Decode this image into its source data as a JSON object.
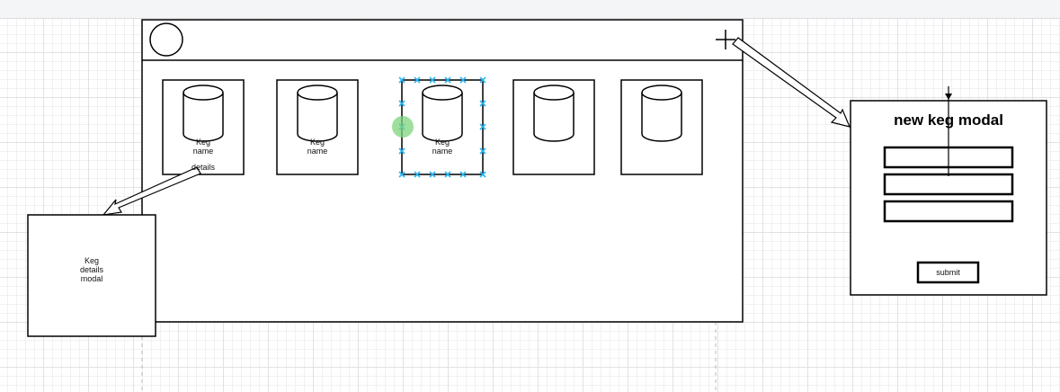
{
  "app_frame": {
    "keg_cards": [
      {
        "label": "Keg\nname",
        "sublabel": "details"
      },
      {
        "label": "Keg\nname"
      },
      {
        "label": "Keg\nname",
        "selected": true
      },
      {
        "label": ""
      },
      {
        "label": ""
      }
    ],
    "add_icon": "plus-icon",
    "avatar_icon": "circle-icon"
  },
  "details_modal": {
    "label": "Keg\ndetails\nmodal"
  },
  "new_keg_modal": {
    "title": "new keg modal",
    "submit_label": "submit"
  },
  "colors": {
    "stroke": "#000000",
    "selection_handle": "#29b6f2",
    "hover_dot": "#7ed47e",
    "grid": "#e2e2e2"
  }
}
